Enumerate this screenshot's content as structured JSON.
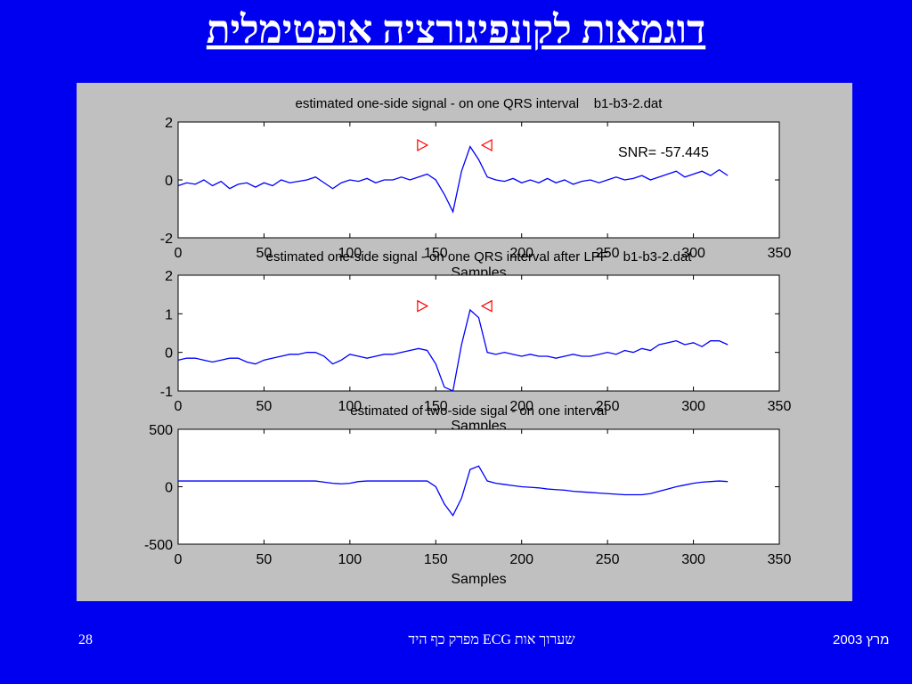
{
  "slide_title": "דוגמאות לקונפיגורציה אופטימלית",
  "footer": {
    "page": "28",
    "center": "שערוך אות ECG מפרק כף היד",
    "date": "מרץ 2003"
  },
  "chart_data": [
    {
      "type": "line",
      "title": "estimated one-side signal - on one QRS interval    b1-b3-2.dat",
      "xlabel": "Samples",
      "annotation": "SNR= -57.445",
      "x": [
        0,
        5,
        10,
        15,
        20,
        25,
        30,
        35,
        40,
        45,
        50,
        55,
        60,
        65,
        70,
        75,
        80,
        85,
        90,
        95,
        100,
        105,
        110,
        115,
        120,
        125,
        130,
        135,
        140,
        145,
        150,
        155,
        160,
        165,
        170,
        175,
        180,
        185,
        190,
        195,
        200,
        205,
        210,
        215,
        220,
        225,
        230,
        235,
        240,
        245,
        250,
        255,
        260,
        265,
        270,
        275,
        280,
        285,
        290,
        295,
        300,
        305,
        310,
        315,
        320
      ],
      "series": [
        {
          "color": "#0000ff",
          "values": [
            -0.2,
            -0.1,
            -0.15,
            0.0,
            -0.2,
            -0.05,
            -0.3,
            -0.15,
            -0.1,
            -0.25,
            -0.1,
            -0.2,
            0.0,
            -0.1,
            -0.05,
            0.0,
            0.1,
            -0.1,
            -0.3,
            -0.1,
            0.0,
            -0.05,
            0.05,
            -0.1,
            0.0,
            0.0,
            0.1,
            0.0,
            0.1,
            0.2,
            0.0,
            -0.5,
            -1.1,
            0.3,
            1.15,
            0.7,
            0.1,
            0.0,
            -0.05,
            0.05,
            -0.1,
            0.0,
            -0.1,
            0.05,
            -0.1,
            0.0,
            -0.15,
            -0.05,
            0.0,
            -0.1,
            0.0,
            0.1,
            0.0,
            0.05,
            0.15,
            0.0,
            0.1,
            0.2,
            0.3,
            0.1,
            0.2,
            0.3,
            0.15,
            0.35,
            0.15
          ]
        }
      ],
      "markers": {
        "x": [
          142,
          180
        ],
        "values": [
          1.2,
          1.2
        ],
        "color": "#ff0000"
      },
      "xlim": [
        0,
        350
      ],
      "xticks": [
        0,
        50,
        100,
        150,
        200,
        250,
        300,
        350
      ],
      "ylim": [
        -2,
        2
      ],
      "yticks": [
        -2,
        0,
        2
      ]
    },
    {
      "type": "line",
      "title": "estimated one-side signal - on one QRS interval after LPF    b1-b3-2.dat",
      "xlabel": "Samples",
      "x": [
        0,
        5,
        10,
        15,
        20,
        25,
        30,
        35,
        40,
        45,
        50,
        55,
        60,
        65,
        70,
        75,
        80,
        85,
        90,
        95,
        100,
        105,
        110,
        115,
        120,
        125,
        130,
        135,
        140,
        145,
        150,
        155,
        160,
        165,
        170,
        175,
        180,
        185,
        190,
        195,
        200,
        205,
        210,
        215,
        220,
        225,
        230,
        235,
        240,
        245,
        250,
        255,
        260,
        265,
        270,
        275,
        280,
        285,
        290,
        295,
        300,
        305,
        310,
        315,
        320
      ],
      "series": [
        {
          "color": "#0000ff",
          "values": [
            -0.2,
            -0.15,
            -0.15,
            -0.2,
            -0.25,
            -0.2,
            -0.15,
            -0.15,
            -0.25,
            -0.3,
            -0.2,
            -0.15,
            -0.1,
            -0.05,
            -0.05,
            0.0,
            0.0,
            -0.1,
            -0.3,
            -0.2,
            -0.05,
            -0.1,
            -0.15,
            -0.1,
            -0.05,
            -0.05,
            0.0,
            0.05,
            0.1,
            0.05,
            -0.3,
            -0.9,
            -1.0,
            0.2,
            1.1,
            0.9,
            0.0,
            -0.05,
            0.0,
            -0.05,
            -0.1,
            -0.05,
            -0.1,
            -0.1,
            -0.15,
            -0.1,
            -0.05,
            -0.1,
            -0.1,
            -0.05,
            0.0,
            -0.05,
            0.05,
            0.0,
            0.1,
            0.05,
            0.2,
            0.25,
            0.3,
            0.2,
            0.25,
            0.15,
            0.3,
            0.3,
            0.2
          ]
        }
      ],
      "markers": {
        "x": [
          142,
          180
        ],
        "values": [
          1.2,
          1.2
        ],
        "color": "#ff0000"
      },
      "xlim": [
        0,
        350
      ],
      "xticks": [
        0,
        50,
        100,
        150,
        200,
        250,
        300,
        350
      ],
      "ylim": [
        -1,
        2
      ],
      "yticks": [
        -1,
        0,
        1,
        2
      ]
    },
    {
      "type": "line",
      "title": "estimated of two-side sigal - on one interval",
      "xlabel": "Samples",
      "x": [
        0,
        5,
        10,
        15,
        20,
        25,
        30,
        35,
        40,
        45,
        50,
        55,
        60,
        65,
        70,
        75,
        80,
        85,
        90,
        95,
        100,
        105,
        110,
        115,
        120,
        125,
        130,
        135,
        140,
        145,
        150,
        155,
        160,
        165,
        170,
        175,
        180,
        185,
        190,
        195,
        200,
        205,
        210,
        215,
        220,
        225,
        230,
        235,
        240,
        245,
        250,
        255,
        260,
        265,
        270,
        275,
        280,
        285,
        290,
        295,
        300,
        305,
        310,
        315,
        320
      ],
      "series": [
        {
          "color": "#0000ff",
          "values": [
            50,
            50,
            50,
            50,
            50,
            50,
            50,
            50,
            50,
            50,
            50,
            50,
            50,
            50,
            50,
            50,
            50,
            40,
            30,
            25,
            30,
            45,
            50,
            50,
            50,
            50,
            50,
            50,
            50,
            50,
            0,
            -150,
            -250,
            -100,
            150,
            180,
            50,
            30,
            20,
            10,
            0,
            -5,
            -10,
            -20,
            -25,
            -30,
            -40,
            -45,
            -50,
            -55,
            -60,
            -65,
            -70,
            -70,
            -70,
            -60,
            -40,
            -20,
            0,
            15,
            30,
            40,
            45,
            50,
            45
          ]
        }
      ],
      "xlim": [
        0,
        350
      ],
      "xticks": [
        0,
        50,
        100,
        150,
        200,
        250,
        300,
        350
      ],
      "ylim": [
        -500,
        500
      ],
      "yticks": [
        -500,
        0,
        500
      ]
    }
  ]
}
